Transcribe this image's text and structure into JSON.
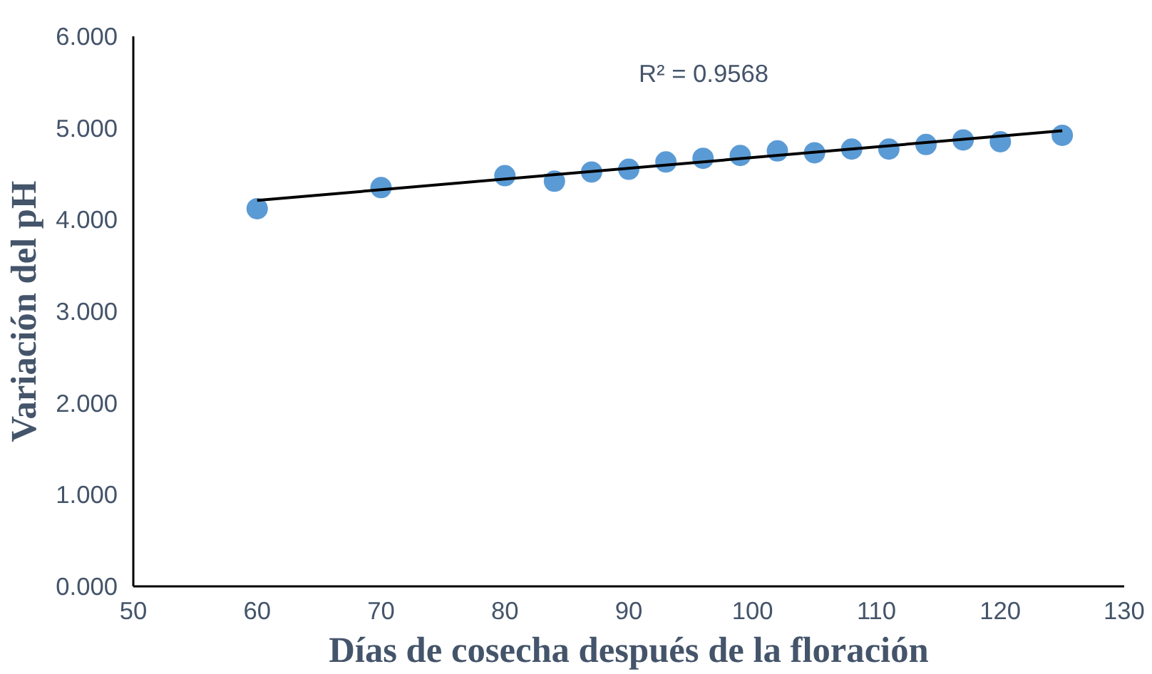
{
  "chart_data": {
    "type": "scatter",
    "xlabel": "Días de cosecha después de la floración",
    "ylabel": "Variación del pH",
    "x": [
      60,
      70,
      80,
      84,
      87,
      90,
      93,
      96,
      99,
      102,
      105,
      108,
      111,
      114,
      117,
      120,
      125
    ],
    "series": [
      {
        "color": "#5b9bd5",
        "marker": "circle",
        "values": [
          4.12,
          4.35,
          4.48,
          4.42,
          4.52,
          4.55,
          4.63,
          4.67,
          4.7,
          4.75,
          4.73,
          4.77,
          4.77,
          4.82,
          4.87,
          4.85,
          4.92
        ]
      },
      {
        "type": "line",
        "marker": "none",
        "color": "#000000",
        "x": [
          60,
          125
        ],
        "values": [
          4.21,
          4.97
        ]
      }
    ],
    "annotations": [
      "R² = 0.9568"
    ],
    "xlim": [
      50,
      130
    ],
    "xticks": [
      50,
      60,
      70,
      80,
      90,
      100,
      110,
      120,
      130
    ],
    "ylim": [
      0,
      6
    ],
    "yticks": [
      {
        "value": 0,
        "label": "0.000"
      },
      {
        "value": 1,
        "label": "1.000"
      },
      {
        "value": 2,
        "label": "2.000"
      },
      {
        "value": 3,
        "label": "3.000"
      },
      {
        "value": 4,
        "label": "4.000"
      },
      {
        "value": 5,
        "label": "5.000"
      },
      {
        "value": 6,
        "label": "6.000"
      }
    ],
    "grid": false
  }
}
